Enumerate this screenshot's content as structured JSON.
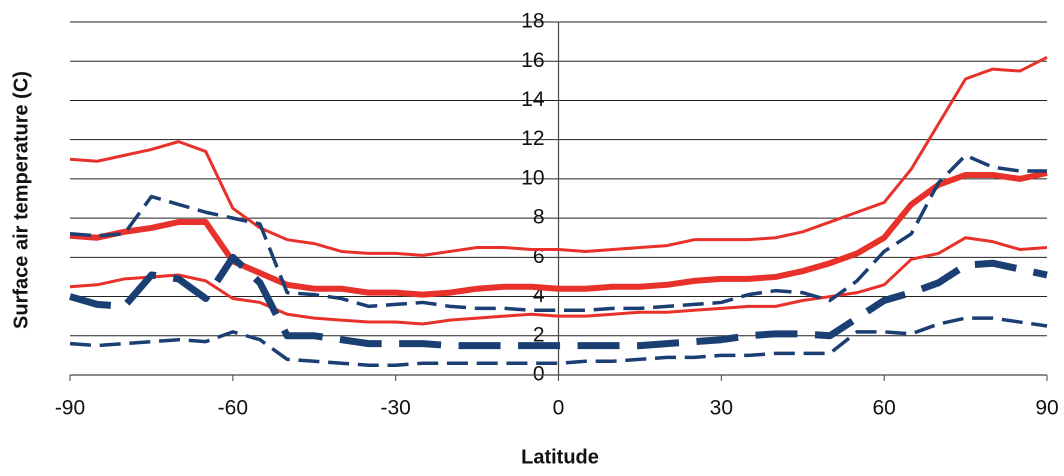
{
  "chart_data": {
    "type": "line",
    "x_label": "Latitude",
    "y_label": "Surface air temperature (C)",
    "x": [
      -90,
      -85,
      -80,
      -75,
      -70,
      -65,
      -60,
      -55,
      -50,
      -45,
      -40,
      -35,
      -30,
      -25,
      -20,
      -15,
      -10,
      -5,
      0,
      5,
      10,
      15,
      20,
      25,
      30,
      35,
      40,
      45,
      50,
      55,
      60,
      65,
      70,
      75,
      80,
      85,
      90
    ],
    "xlim": [
      -90,
      90
    ],
    "xticks": [
      -90,
      -60,
      -30,
      0,
      30,
      60,
      90
    ],
    "ylim": [
      0,
      18
    ],
    "yticks": [
      0,
      2,
      4,
      6,
      8,
      10,
      12,
      14,
      16,
      18
    ],
    "grid": true,
    "series": [
      {
        "color": "#e8312a",
        "width": 3,
        "dash": "none",
        "values": [
          11.0,
          10.9,
          11.2,
          11.5,
          11.9,
          11.4,
          8.5,
          7.5,
          6.9,
          6.7,
          6.3,
          6.2,
          6.2,
          6.1,
          6.3,
          6.5,
          6.5,
          6.4,
          6.4,
          6.3,
          6.4,
          6.5,
          6.6,
          6.9,
          6.9,
          6.9,
          7.0,
          7.3,
          7.8,
          8.3,
          8.8,
          10.5,
          12.8,
          15.1,
          15.6,
          15.5,
          16.2
        ]
      },
      {
        "color": "#e8312a",
        "width": 6,
        "dash": "none",
        "values": [
          7.1,
          7.0,
          7.3,
          7.5,
          7.8,
          7.8,
          5.8,
          5.2,
          4.6,
          4.4,
          4.4,
          4.2,
          4.2,
          4.1,
          4.2,
          4.4,
          4.5,
          4.5,
          4.4,
          4.4,
          4.5,
          4.5,
          4.6,
          4.8,
          4.9,
          4.9,
          5.0,
          5.3,
          5.7,
          6.2,
          7.0,
          8.7,
          9.7,
          10.2,
          10.2,
          10.0,
          10.3
        ]
      },
      {
        "color": "#e8312a",
        "width": 3,
        "dash": "none",
        "values": [
          4.5,
          4.6,
          4.9,
          5.0,
          5.1,
          4.8,
          3.9,
          3.7,
          3.1,
          2.9,
          2.8,
          2.7,
          2.7,
          2.6,
          2.8,
          2.9,
          3.0,
          3.1,
          3.0,
          3.0,
          3.1,
          3.2,
          3.2,
          3.3,
          3.4,
          3.5,
          3.5,
          3.8,
          4.0,
          4.2,
          4.6,
          5.9,
          6.2,
          7.0,
          6.8,
          6.4,
          6.5
        ]
      },
      {
        "color": "#1b3f73",
        "width": 3.5,
        "dash": "dashed",
        "values": [
          7.2,
          7.1,
          7.2,
          9.1,
          8.7,
          8.3,
          8.0,
          7.7,
          4.2,
          4.1,
          3.9,
          3.5,
          3.6,
          3.7,
          3.5,
          3.4,
          3.4,
          3.3,
          3.3,
          3.3,
          3.4,
          3.4,
          3.5,
          3.6,
          3.7,
          4.1,
          4.3,
          4.2,
          3.8,
          4.8,
          6.3,
          7.2,
          9.8,
          11.2,
          10.6,
          10.4,
          10.4
        ]
      },
      {
        "color": "#1b3f73",
        "width": 7,
        "dash": "dashed",
        "values": [
          4.0,
          3.6,
          3.5,
          5.1,
          4.9,
          3.9,
          6.0,
          4.7,
          2.0,
          2.0,
          1.8,
          1.6,
          1.6,
          1.6,
          1.5,
          1.5,
          1.5,
          1.5,
          1.5,
          1.5,
          1.5,
          1.5,
          1.6,
          1.7,
          1.8,
          2.0,
          2.1,
          2.1,
          2.0,
          2.9,
          3.8,
          4.2,
          4.7,
          5.6,
          5.7,
          5.4,
          5.1
        ]
      },
      {
        "color": "#1b3f73",
        "width": 3.5,
        "dash": "dashed",
        "values": [
          1.6,
          1.5,
          1.6,
          1.7,
          1.8,
          1.7,
          2.2,
          1.8,
          0.8,
          0.7,
          0.6,
          0.5,
          0.5,
          0.6,
          0.6,
          0.6,
          0.6,
          0.6,
          0.6,
          0.7,
          0.7,
          0.8,
          0.9,
          0.9,
          1.0,
          1.0,
          1.1,
          1.1,
          1.1,
          2.2,
          2.2,
          2.1,
          2.6,
          2.9,
          2.9,
          2.7,
          2.5
        ]
      }
    ]
  }
}
